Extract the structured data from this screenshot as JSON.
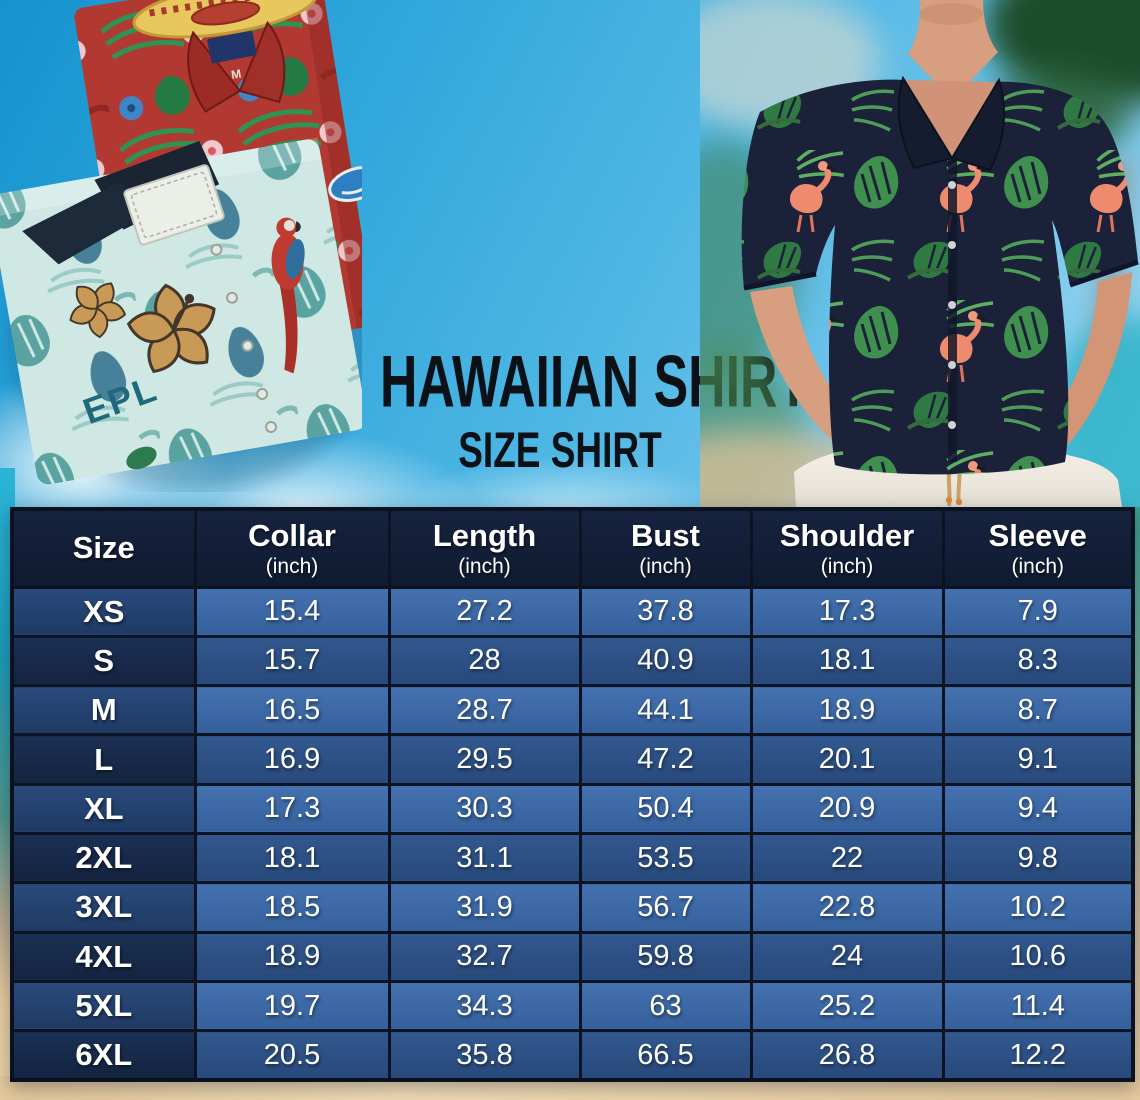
{
  "page": {
    "title": "HAWAIIAN SHIRT",
    "subtitle": "SIZE SHIRT"
  },
  "photo_text": {
    "red_shirt_size_tag": "M",
    "teal_shirt_print": "EPL"
  },
  "size_chart": {
    "columns": [
      {
        "label": "Size",
        "unit": ""
      },
      {
        "label": "Collar",
        "unit": "(inch)"
      },
      {
        "label": "Length",
        "unit": "(inch)"
      },
      {
        "label": "Bust",
        "unit": "(inch)"
      },
      {
        "label": "Shoulder",
        "unit": "(inch)"
      },
      {
        "label": "Sleeve",
        "unit": "(inch)"
      }
    ],
    "rows": [
      {
        "size": "XS",
        "values": [
          "15.4",
          "27.2",
          "37.8",
          "17.3",
          "7.9"
        ]
      },
      {
        "size": "S",
        "values": [
          "15.7",
          "28",
          "40.9",
          "18.1",
          "8.3"
        ]
      },
      {
        "size": "M",
        "values": [
          "16.5",
          "28.7",
          "44.1",
          "18.9",
          "8.7"
        ]
      },
      {
        "size": "L",
        "values": [
          "16.9",
          "29.5",
          "47.2",
          "20.1",
          "9.1"
        ]
      },
      {
        "size": "XL",
        "values": [
          "17.3",
          "30.3",
          "50.4",
          "20.9",
          "9.4"
        ]
      },
      {
        "size": "2XL",
        "values": [
          "18.1",
          "31.1",
          "53.5",
          "22",
          "9.8"
        ]
      },
      {
        "size": "3XL",
        "values": [
          "18.5",
          "31.9",
          "56.7",
          "22.8",
          "10.2"
        ]
      },
      {
        "size": "4XL",
        "values": [
          "18.9",
          "32.7",
          "59.8",
          "24",
          "10.6"
        ]
      },
      {
        "size": "5XL",
        "values": [
          "19.7",
          "34.3",
          "63",
          "25.2",
          "11.4"
        ]
      },
      {
        "size": "6XL",
        "values": [
          "20.5",
          "35.8",
          "66.5",
          "26.8",
          "12.2"
        ]
      }
    ]
  },
  "colors": {
    "header_bg": "#13203a",
    "row_light": "#3d6aa9",
    "row_dark": "#2d5187",
    "size_col_light": "#24406c",
    "size_col_dark": "#172b4a",
    "table_border": "#0c1424",
    "table_text": "#ffffff",
    "title_text": "#0c1117",
    "sky_blue": "#2ea5da",
    "sand_tan": "#ecd2a6",
    "shirt_navy": "#1a2138",
    "leaf_green": "#3f8f4f",
    "flamingo_pink": "#ee8b6f",
    "red_shirt": "#b23931",
    "teal_shirt": "#cfe8e4"
  },
  "chart_data": {
    "type": "table",
    "title": "HAWAIIAN SHIRT — SIZE SHIRT",
    "columns": [
      "Size",
      "Collar (inch)",
      "Length (inch)",
      "Bust (inch)",
      "Shoulder (inch)",
      "Sleeve (inch)"
    ],
    "rows": [
      [
        "XS",
        15.4,
        27.2,
        37.8,
        17.3,
        7.9
      ],
      [
        "S",
        15.7,
        28,
        40.9,
        18.1,
        8.3
      ],
      [
        "M",
        16.5,
        28.7,
        44.1,
        18.9,
        8.7
      ],
      [
        "L",
        16.9,
        29.5,
        47.2,
        20.1,
        9.1
      ],
      [
        "XL",
        17.3,
        30.3,
        50.4,
        20.9,
        9.4
      ],
      [
        "2XL",
        18.1,
        31.1,
        53.5,
        22,
        9.8
      ],
      [
        "3XL",
        18.5,
        31.9,
        56.7,
        22.8,
        10.2
      ],
      [
        "4XL",
        18.9,
        32.7,
        59.8,
        24,
        10.6
      ],
      [
        "5XL",
        19.7,
        34.3,
        63,
        25.2,
        11.4
      ],
      [
        "6XL",
        20.5,
        35.8,
        66.5,
        26.8,
        12.2
      ]
    ]
  }
}
